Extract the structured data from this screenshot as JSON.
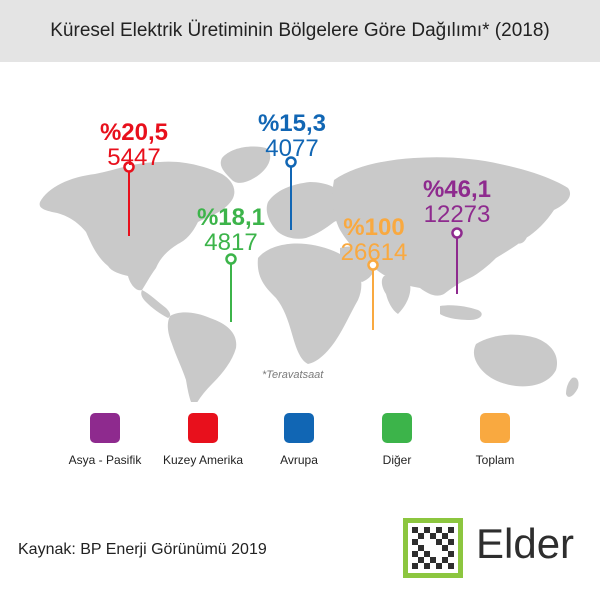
{
  "title": "Küresel Elektrik Üretiminin Bölgelere Göre Dağılımı* (2018)",
  "note": "*Teravatsaat",
  "source": "Kaynak: BP Enerji Görünümü 2019",
  "logo": {
    "text": "Elder"
  },
  "colors": {
    "asya": "#8e2a8e",
    "kuzey": "#e8101c",
    "avrupa": "#1166b4",
    "diger": "#3cb44a",
    "toplam": "#f9a940",
    "map": "#c9c9c9"
  },
  "chart_data": {
    "type": "map",
    "title": "Küresel Elektrik Üretiminin Bölgelere Göre Dağılımı* (2018)",
    "unit": "Teravatsaat",
    "series": [
      {
        "name": "Asya - Pasifik",
        "percent_label": "%46,1",
        "percent": 46.1,
        "value_label": "12273",
        "value": 12273
      },
      {
        "name": "Kuzey Amerika",
        "percent_label": "%20,5",
        "percent": 20.5,
        "value_label": "5447",
        "value": 5447
      },
      {
        "name": "Avrupa",
        "percent_label": "%15,3",
        "percent": 15.3,
        "value_label": "4077",
        "value": 4077
      },
      {
        "name": "Diğer",
        "percent_label": "%18,1",
        "percent": 18.1,
        "value_label": "4817",
        "value": 4817
      },
      {
        "name": "Toplam",
        "percent_label": "%100",
        "percent": 100,
        "value_label": "26614",
        "value": 26614
      }
    ],
    "legend": [
      "Asya - Pasifik",
      "Kuzey Amerika",
      "Avrupa",
      "Diğer",
      "Toplam"
    ]
  }
}
